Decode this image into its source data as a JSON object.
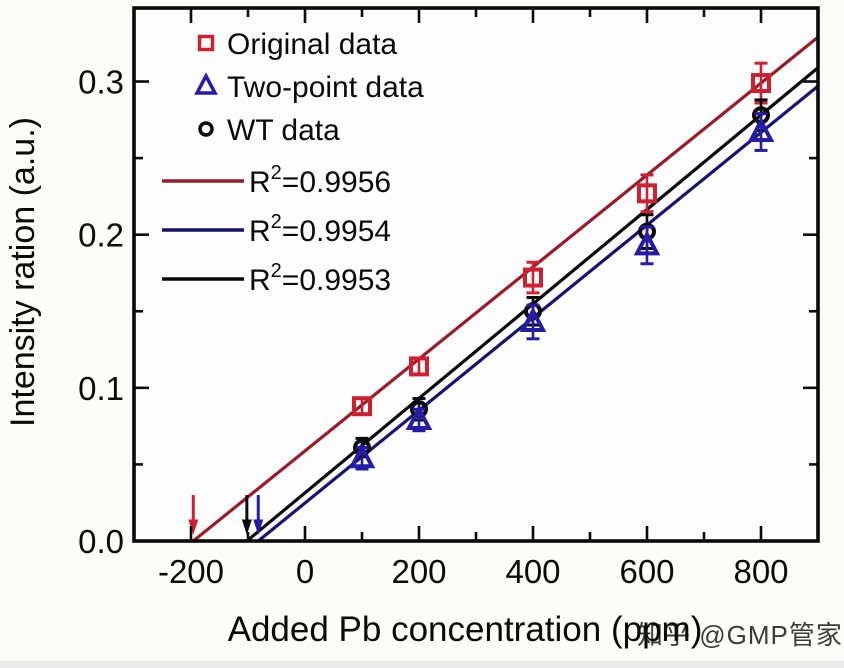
{
  "watermark": {
    "text": "知乎 @GMP管家",
    "color": "#bdbdbd"
  },
  "page": {
    "background": "#fcfcfb",
    "plot_background": "#fdfdfd",
    "frame_color": "#0a0a0a",
    "bottom_strip_color": "#e9e9e9"
  },
  "chart_data": {
    "type": "scatter",
    "title": "",
    "xlabel": "Added Pb concentration (ppm)",
    "ylabel": "Intensity ration (a.u.)",
    "xlim": [
      -300,
      900
    ],
    "ylim": [
      0,
      0.348
    ],
    "grid": false,
    "legend_position": "top-left",
    "x_major_ticks": [
      -200,
      0,
      200,
      400,
      600,
      800
    ],
    "x_minor_ticks": [
      -100,
      100,
      300,
      500,
      700
    ],
    "y_major_ticks": [
      0.0,
      0.1,
      0.2,
      0.3
    ],
    "y_minor_ticks": [
      0.05,
      0.15,
      0.25
    ],
    "x": [
      100,
      200,
      400,
      600,
      800
    ],
    "series": [
      {
        "name": "Original data",
        "marker": "square",
        "color": "#d01f2f",
        "values": [
          0.088,
          0.114,
          0.172,
          0.227,
          0.299
        ],
        "yerr": [
          0.005,
          0.005,
          0.01,
          0.012,
          0.013
        ]
      },
      {
        "name": "Two-point data",
        "marker": "triangle",
        "color": "#241ca6",
        "values": [
          0.054,
          0.079,
          0.143,
          0.193,
          0.267
        ],
        "yerr": [
          0.007,
          0.007,
          0.011,
          0.012,
          0.012
        ]
      },
      {
        "name": "WT data",
        "marker": "circle",
        "color": "#0a0a0a",
        "values": [
          0.061,
          0.086,
          0.15,
          0.202,
          0.278
        ],
        "yerr": [
          0.006,
          0.007,
          0.009,
          0.011,
          0.01
        ]
      }
    ],
    "fits": [
      {
        "r2": "0.9956",
        "label": "R²=0.9956",
        "color": "#9b1b2a",
        "x_intercept": -196,
        "x_end": 900,
        "y_end": 0.329
      },
      {
        "r2": "0.9954",
        "label": "R²=0.9954",
        "color": "#18136e",
        "x_intercept": -82,
        "x_end": 900,
        "y_end": 0.297
      },
      {
        "r2": "0.9953",
        "label": "R²=0.9953",
        "color": "#0a0a0a",
        "x_intercept": -102,
        "x_end": 900,
        "y_end": 0.309
      }
    ],
    "arrows": [
      {
        "x": -196,
        "color": "#d01f2f"
      },
      {
        "x": -102,
        "color": "#0a0a0a"
      },
      {
        "x": -82,
        "color": "#241ca6"
      }
    ]
  }
}
